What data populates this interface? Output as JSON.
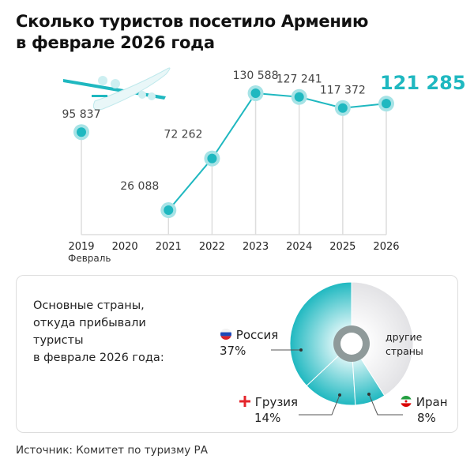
{
  "title": "Сколько туристов посетило Армению в феврале 2026 года",
  "title_lines": [
    "Сколько туристов посетило Армению",
    "в феврале 2026 года"
  ],
  "colors": {
    "accent": "#1fb8c0",
    "halo": "#a6e3e6",
    "others": "#e8e8ea",
    "grid": "#dddddd",
    "highlight_label": "#1fb8c0"
  },
  "chart_data": [
    {
      "type": "line",
      "x": [
        "2019",
        "2020",
        "2021",
        "2022",
        "2023",
        "2024",
        "2025",
        "2026"
      ],
      "values": [
        95837,
        null,
        26088,
        72262,
        130588,
        127241,
        117372,
        121285
      ],
      "data_labels": [
        "95 837",
        "",
        "26 088",
        "72 262",
        "130 588",
        "127 241",
        "117 372",
        "121 285"
      ],
      "xlabel": "Февраль",
      "ylim": [
        0,
        130588
      ],
      "grid": false,
      "highlight": "2026"
    },
    {
      "type": "pie",
      "title": "Основные страны, откуда прибывали туристы в феврале 2026 года:",
      "title_lines": [
        "Основные страны,",
        "откуда прибывали",
        "туристы",
        "в феврале 2026 года:"
      ],
      "slices": [
        {
          "name": "Россия",
          "value": 37,
          "label": "37%",
          "flag": "russia-flag-icon"
        },
        {
          "name": "Грузия",
          "value": 14,
          "label": "14%",
          "flag": "georgia-flag-icon"
        },
        {
          "name": "Иран",
          "value": 8,
          "label": "8%",
          "flag": "iran-flag-icon"
        },
        {
          "name": "другие страны",
          "value": 41,
          "label": ""
        }
      ],
      "others_lines": [
        "другие",
        "страны"
      ]
    }
  ],
  "source": "Источник: Комитет по туризму РА",
  "decoration": "airplane-icon"
}
